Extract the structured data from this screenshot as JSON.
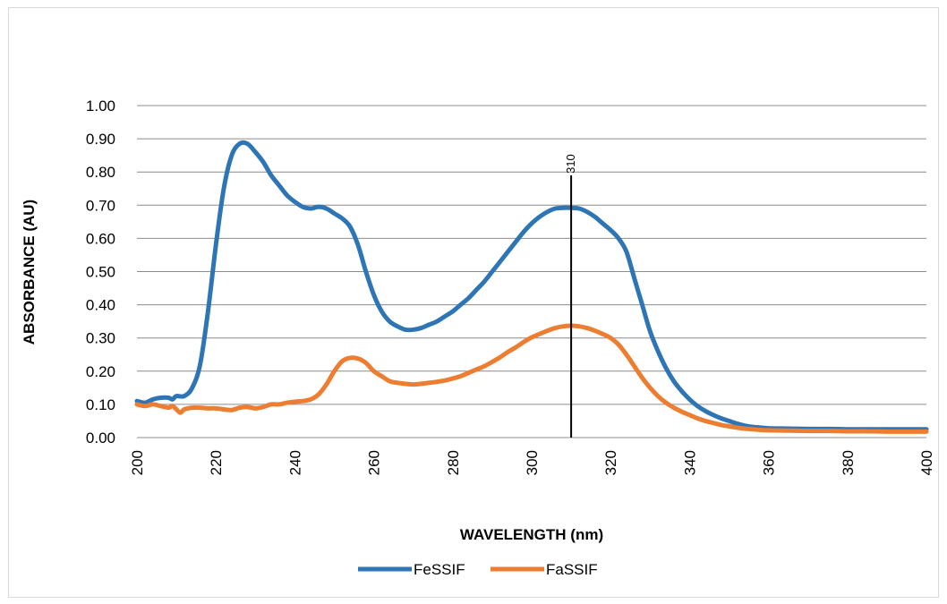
{
  "chart_data": {
    "type": "line",
    "xlabel": "WAVELENGTH (nm)",
    "ylabel": "ABSORBANCE (AU)",
    "xlim": [
      200,
      400
    ],
    "ylim": [
      0,
      1
    ],
    "x_ticks": [
      "200",
      "220",
      "240",
      "260",
      "280",
      "300",
      "320",
      "340",
      "360",
      "380",
      "400"
    ],
    "y_ticks": [
      "0.00",
      "0.10",
      "0.20",
      "0.30",
      "0.40",
      "0.50",
      "0.60",
      "0.70",
      "0.80",
      "0.90",
      "1.00"
    ],
    "grid": true,
    "legend_position": "bottom",
    "annotation": {
      "x": 310,
      "label": "310"
    },
    "series": [
      {
        "name": "FeSSIF",
        "color": "#2e75b6",
        "points": [
          [
            200,
            0.11
          ],
          [
            202,
            0.105
          ],
          [
            204,
            0.115
          ],
          [
            206,
            0.12
          ],
          [
            208,
            0.12
          ],
          [
            209,
            0.115
          ],
          [
            210,
            0.125
          ],
          [
            212,
            0.125
          ],
          [
            214,
            0.15
          ],
          [
            216,
            0.22
          ],
          [
            218,
            0.38
          ],
          [
            220,
            0.58
          ],
          [
            222,
            0.75
          ],
          [
            224,
            0.85
          ],
          [
            226,
            0.885
          ],
          [
            228,
            0.885
          ],
          [
            230,
            0.86
          ],
          [
            232,
            0.83
          ],
          [
            234,
            0.79
          ],
          [
            236,
            0.76
          ],
          [
            238,
            0.73
          ],
          [
            240,
            0.71
          ],
          [
            242,
            0.695
          ],
          [
            244,
            0.69
          ],
          [
            246,
            0.695
          ],
          [
            248,
            0.69
          ],
          [
            250,
            0.675
          ],
          [
            252,
            0.66
          ],
          [
            254,
            0.635
          ],
          [
            256,
            0.58
          ],
          [
            258,
            0.5
          ],
          [
            260,
            0.43
          ],
          [
            262,
            0.38
          ],
          [
            264,
            0.35
          ],
          [
            266,
            0.335
          ],
          [
            268,
            0.325
          ],
          [
            270,
            0.325
          ],
          [
            272,
            0.33
          ],
          [
            274,
            0.34
          ],
          [
            276,
            0.35
          ],
          [
            278,
            0.365
          ],
          [
            280,
            0.38
          ],
          [
            282,
            0.4
          ],
          [
            284,
            0.42
          ],
          [
            286,
            0.445
          ],
          [
            288,
            0.47
          ],
          [
            290,
            0.5
          ],
          [
            292,
            0.53
          ],
          [
            294,
            0.56
          ],
          [
            296,
            0.59
          ],
          [
            298,
            0.62
          ],
          [
            300,
            0.645
          ],
          [
            302,
            0.665
          ],
          [
            304,
            0.68
          ],
          [
            306,
            0.69
          ],
          [
            308,
            0.692
          ],
          [
            310,
            0.692
          ],
          [
            312,
            0.69
          ],
          [
            314,
            0.68
          ],
          [
            316,
            0.665
          ],
          [
            318,
            0.645
          ],
          [
            320,
            0.625
          ],
          [
            322,
            0.6
          ],
          [
            324,
            0.56
          ],
          [
            326,
            0.48
          ],
          [
            328,
            0.4
          ],
          [
            330,
            0.32
          ],
          [
            332,
            0.26
          ],
          [
            334,
            0.21
          ],
          [
            336,
            0.17
          ],
          [
            338,
            0.14
          ],
          [
            340,
            0.115
          ],
          [
            342,
            0.095
          ],
          [
            344,
            0.08
          ],
          [
            346,
            0.068
          ],
          [
            348,
            0.058
          ],
          [
            350,
            0.05
          ],
          [
            352,
            0.042
          ],
          [
            354,
            0.036
          ],
          [
            356,
            0.032
          ],
          [
            358,
            0.03
          ],
          [
            360,
            0.028
          ],
          [
            365,
            0.027
          ],
          [
            370,
            0.026
          ],
          [
            375,
            0.026
          ],
          [
            380,
            0.025
          ],
          [
            385,
            0.025
          ],
          [
            390,
            0.025
          ],
          [
            395,
            0.025
          ],
          [
            400,
            0.025
          ]
        ]
      },
      {
        "name": "FaSSIF",
        "color": "#ed7d31",
        "points": [
          [
            200,
            0.1
          ],
          [
            202,
            0.095
          ],
          [
            204,
            0.1
          ],
          [
            206,
            0.095
          ],
          [
            208,
            0.09
          ],
          [
            209,
            0.095
          ],
          [
            210,
            0.085
          ],
          [
            211,
            0.075
          ],
          [
            212,
            0.085
          ],
          [
            214,
            0.09
          ],
          [
            216,
            0.09
          ],
          [
            218,
            0.088
          ],
          [
            220,
            0.088
          ],
          [
            222,
            0.085
          ],
          [
            224,
            0.083
          ],
          [
            226,
            0.09
          ],
          [
            228,
            0.092
          ],
          [
            230,
            0.088
          ],
          [
            232,
            0.092
          ],
          [
            234,
            0.1
          ],
          [
            236,
            0.1
          ],
          [
            238,
            0.105
          ],
          [
            240,
            0.108
          ],
          [
            242,
            0.11
          ],
          [
            244,
            0.115
          ],
          [
            246,
            0.13
          ],
          [
            248,
            0.16
          ],
          [
            250,
            0.2
          ],
          [
            252,
            0.23
          ],
          [
            254,
            0.24
          ],
          [
            256,
            0.238
          ],
          [
            258,
            0.225
          ],
          [
            260,
            0.2
          ],
          [
            262,
            0.185
          ],
          [
            264,
            0.17
          ],
          [
            266,
            0.165
          ],
          [
            268,
            0.162
          ],
          [
            270,
            0.16
          ],
          [
            272,
            0.162
          ],
          [
            274,
            0.165
          ],
          [
            276,
            0.168
          ],
          [
            278,
            0.172
          ],
          [
            280,
            0.178
          ],
          [
            282,
            0.185
          ],
          [
            284,
            0.195
          ],
          [
            286,
            0.205
          ],
          [
            288,
            0.215
          ],
          [
            290,
            0.228
          ],
          [
            292,
            0.242
          ],
          [
            294,
            0.258
          ],
          [
            296,
            0.272
          ],
          [
            298,
            0.288
          ],
          [
            300,
            0.302
          ],
          [
            302,
            0.312
          ],
          [
            304,
            0.322
          ],
          [
            306,
            0.33
          ],
          [
            308,
            0.335
          ],
          [
            310,
            0.337
          ],
          [
            312,
            0.335
          ],
          [
            314,
            0.33
          ],
          [
            316,
            0.322
          ],
          [
            318,
            0.312
          ],
          [
            320,
            0.3
          ],
          [
            322,
            0.28
          ],
          [
            324,
            0.25
          ],
          [
            326,
            0.215
          ],
          [
            328,
            0.18
          ],
          [
            330,
            0.15
          ],
          [
            332,
            0.125
          ],
          [
            334,
            0.105
          ],
          [
            336,
            0.09
          ],
          [
            338,
            0.078
          ],
          [
            340,
            0.068
          ],
          [
            342,
            0.058
          ],
          [
            344,
            0.05
          ],
          [
            346,
            0.044
          ],
          [
            348,
            0.038
          ],
          [
            350,
            0.034
          ],
          [
            352,
            0.03
          ],
          [
            354,
            0.027
          ],
          [
            356,
            0.025
          ],
          [
            358,
            0.023
          ],
          [
            360,
            0.022
          ],
          [
            365,
            0.021
          ],
          [
            370,
            0.02
          ],
          [
            375,
            0.02
          ],
          [
            380,
            0.019
          ],
          [
            385,
            0.019
          ],
          [
            390,
            0.018
          ],
          [
            395,
            0.018
          ],
          [
            400,
            0.018
          ]
        ]
      }
    ]
  }
}
